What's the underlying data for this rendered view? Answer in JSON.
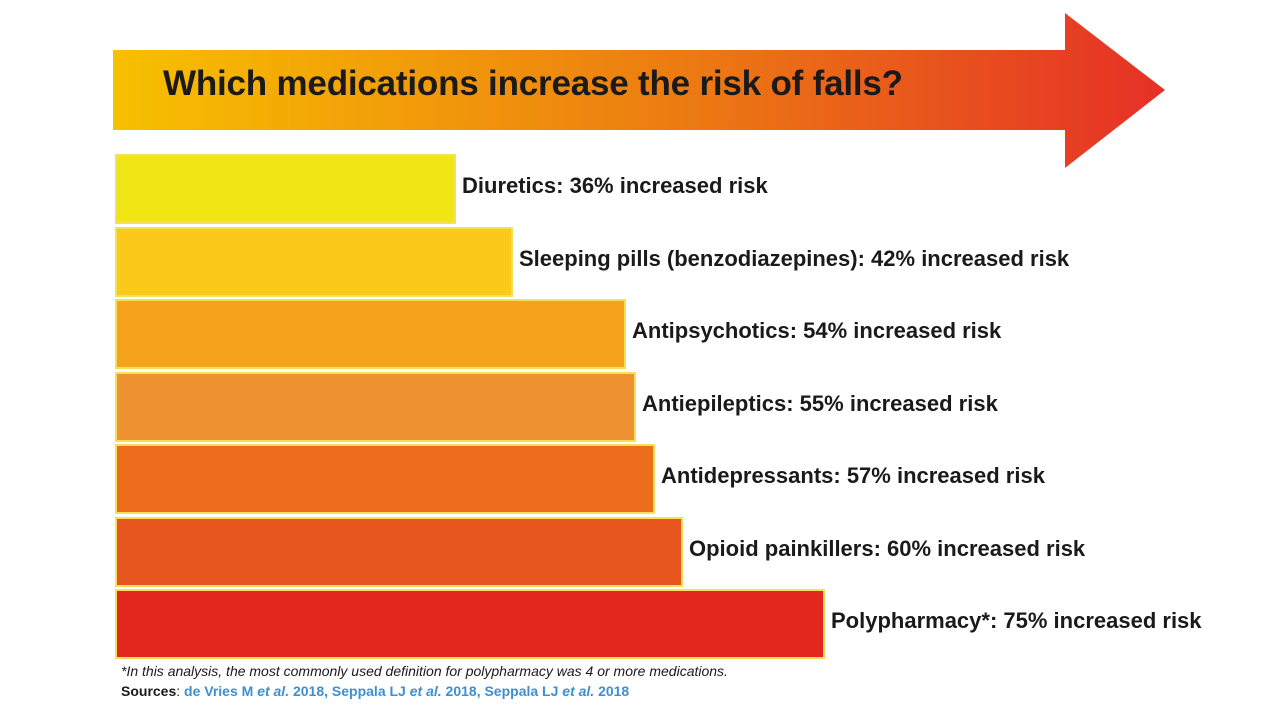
{
  "title": "Which medications increase the risk of falls?",
  "colors": {
    "arrow_start": "#f7c000",
    "arrow_end": "#e53027",
    "bar_border": "#f6e05a",
    "text": "#1a1a1a",
    "link": "#3f8fcf"
  },
  "chart_data": {
    "type": "bar",
    "orientation": "horizontal",
    "title": "Which medications increase the risk of falls?",
    "categories": [
      "Diuretics",
      "Sleeping pills (benzodiazepines)",
      "Antipsychotics",
      "Antiepileptics",
      "Antidepressants",
      "Opioid painkillers",
      "Polypharmacy*"
    ],
    "values": [
      36,
      42,
      54,
      55,
      57,
      60,
      75
    ],
    "unit": "% increased risk",
    "labels": [
      "Diuretics: 36% increased risk",
      "Sleeping pills (benzodiazepines): 42% increased risk",
      "Antipsychotics: 54% increased risk",
      "Antiepileptics: 55% increased risk",
      "Antidepressants: 57% increased risk",
      "Opioid painkillers: 60% increased risk",
      "Polypharmacy*: 75% increased risk"
    ],
    "bar_colors": [
      "#f0e614",
      "#fbc91a",
      "#f5a31c",
      "#ee9232",
      "#ec6d1c",
      "#e8561f",
      "#e3271f"
    ],
    "xlim": [
      0,
      75
    ],
    "grid": false,
    "legend": "none"
  },
  "footnote": "*In this analysis, the most commonly used definition for polypharmacy was 4 or more medications.",
  "sources": {
    "label": "Sources",
    "refs": [
      {
        "author": "de Vries M",
        "etal": "et al.",
        "year": "2018"
      },
      {
        "author": "Seppala LJ",
        "etal": "et al.",
        "year": "2018"
      },
      {
        "author": "Seppala LJ",
        "etal": "et al.",
        "year": "2018"
      }
    ]
  }
}
